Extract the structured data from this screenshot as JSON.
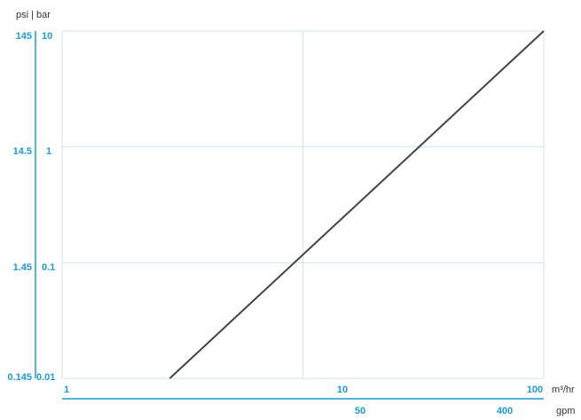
{
  "chart_data": {
    "type": "line",
    "title": "",
    "scale": "log-log",
    "grid": true,
    "colors": {
      "axis": "#1a9cd6",
      "grid": "#cde6f5",
      "line": "#444444"
    },
    "y_unit_label": "psi | bar",
    "x_primary_unit": "m³/hr",
    "x_secondary_unit": "gpm",
    "y_bar_ticks": [
      "10",
      "1",
      "0.1",
      "0.01"
    ],
    "y_psi_ticks": [
      "145",
      "14.5",
      "1.45",
      "0.145"
    ],
    "x_m3hr_ticks": [
      "1",
      "10",
      "100"
    ],
    "x_gpm_ticks": [
      "50",
      "400"
    ],
    "xlim_m3hr": [
      1,
      100
    ],
    "ylim_bar": [
      0.01,
      10
    ],
    "series": [
      {
        "x_m3hr": [
          2.8,
          100
        ],
        "y_bar": [
          0.01,
          10
        ]
      }
    ]
  }
}
